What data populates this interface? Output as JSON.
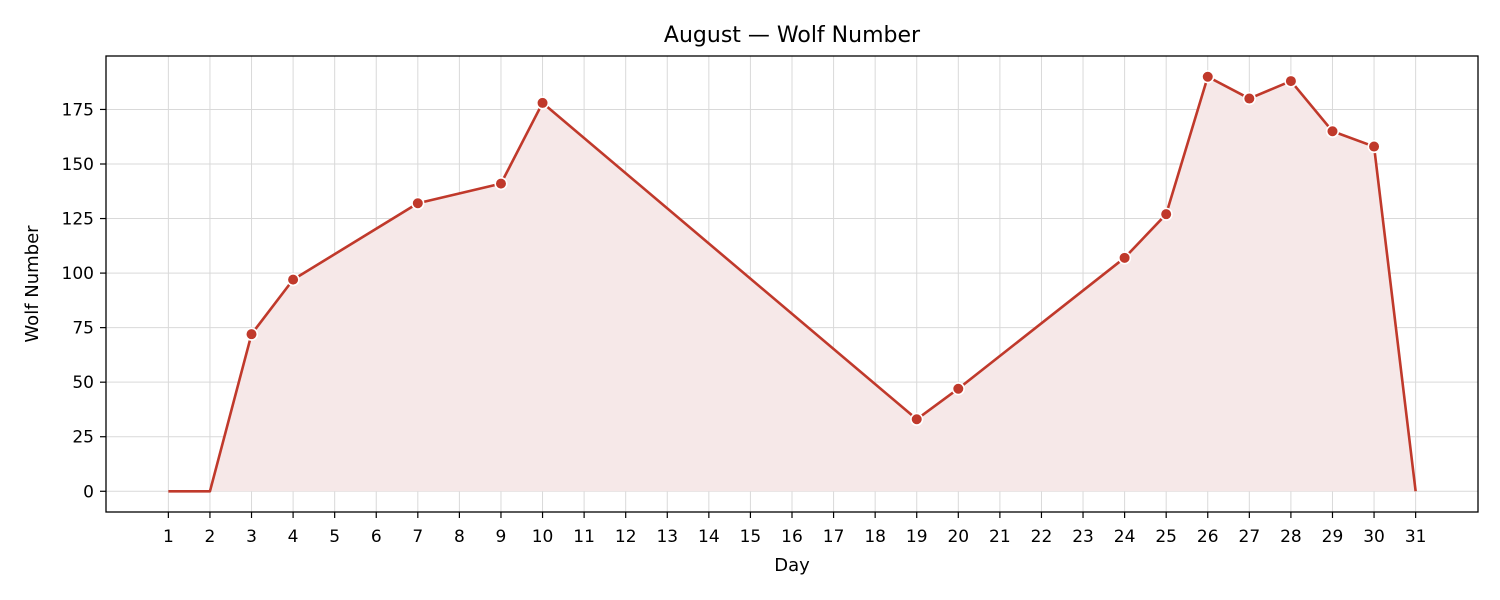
{
  "chart_data": {
    "type": "area",
    "title": "August — Wolf Number",
    "xlabel": "Day",
    "ylabel": "Wolf Number",
    "x": [
      1,
      2,
      3,
      4,
      7,
      9,
      10,
      19,
      20,
      24,
      25,
      26,
      27,
      28,
      29,
      30,
      31
    ],
    "series": [
      {
        "values": [
          0,
          0,
          72,
          97,
          132,
          141,
          178,
          33,
          47,
          107,
          127,
          190,
          180,
          188,
          165,
          158,
          0
        ],
        "markers": [
          false,
          false,
          true,
          true,
          true,
          true,
          true,
          true,
          true,
          true,
          true,
          true,
          true,
          true,
          true,
          true,
          false
        ]
      }
    ],
    "xticks": [
      1,
      2,
      3,
      4,
      5,
      6,
      7,
      8,
      9,
      10,
      11,
      12,
      13,
      14,
      15,
      16,
      17,
      18,
      19,
      20,
      21,
      22,
      23,
      24,
      25,
      26,
      27,
      28,
      29,
      30,
      31
    ],
    "yticks": [
      0,
      25,
      50,
      75,
      100,
      125,
      150,
      175
    ],
    "xlim": [
      -0.5,
      32.5
    ],
    "ylim": [
      -9.5,
      199.5
    ],
    "grid": true,
    "colors": {
      "line": "#c0392b",
      "fill": "#f6e8e8",
      "marker_edge": "#ffffff",
      "grid": "#d9d9d9"
    }
  }
}
